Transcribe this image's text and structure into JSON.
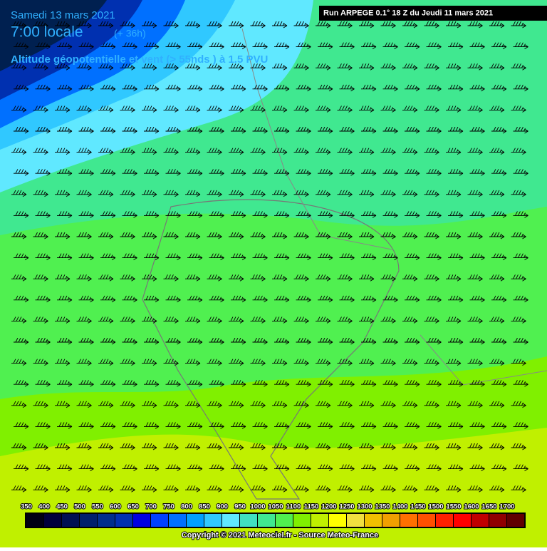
{
  "header": {
    "date": "Samedi 13 mars 2021",
    "time": "7:00 locale",
    "lead": "(+ 36h)",
    "subtitle": "Altitude géopotentielle et vent (> 55nds ) à 1.5 PVU",
    "run": "Run ARPEGE 0.1° 18 Z du Jeudi 11 mars 2021"
  },
  "legend": {
    "values": [
      350,
      400,
      450,
      500,
      550,
      600,
      650,
      700,
      750,
      800,
      850,
      900,
      950,
      1000,
      1050,
      1100,
      1150,
      1200,
      1250,
      1300,
      1350,
      1400,
      1450,
      1500,
      1550,
      1600,
      1650,
      1700
    ],
    "colors": [
      "#000014",
      "#00003c",
      "#001052",
      "#00206c",
      "#002e8c",
      "#0030b0",
      "#0000e0",
      "#0040ff",
      "#0070ff",
      "#00a0ff",
      "#30c8ff",
      "#60e8ff",
      "#40e0c0",
      "#40e890",
      "#50f050",
      "#80f000",
      "#c0f000",
      "#ffff00",
      "#f0e040",
      "#f0c000",
      "#f0a000",
      "#ff7000",
      "#ff5000",
      "#ff2000",
      "#ff0000",
      "#c00000",
      "#900000",
      "#600000"
    ]
  },
  "footer": {
    "copyright": "Copyright © 2021 Meteociel.fr - Source Meteo-France"
  }
}
